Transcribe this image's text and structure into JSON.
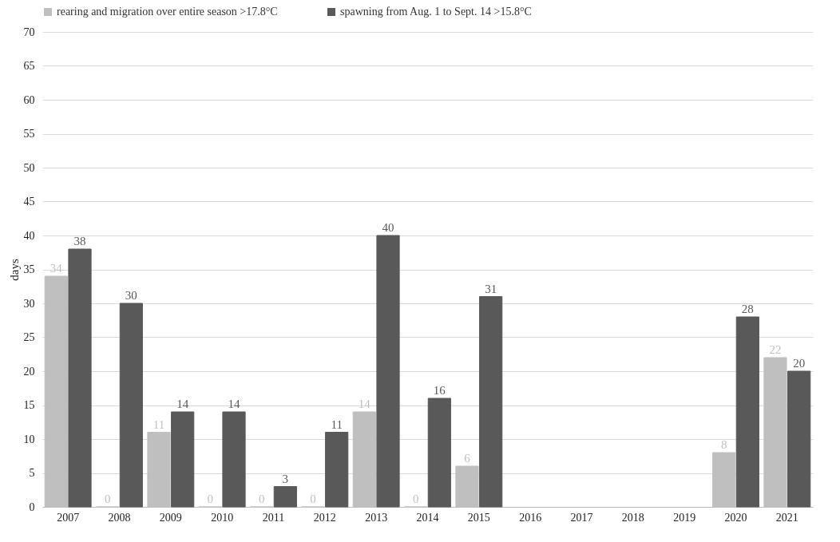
{
  "chart_data": {
    "type": "bar",
    "ylabel": "days",
    "categories": [
      "2007",
      "2008",
      "2009",
      "2010",
      "2011",
      "2012",
      "2013",
      "2014",
      "2015",
      "2016",
      "2017",
      "2018",
      "2019",
      "2020",
      "2021"
    ],
    "series": [
      {
        "name": "rearing and migration over entire season >17.8°C",
        "color": "#bfbfbf",
        "values": [
          34,
          0,
          11,
          0,
          0,
          0,
          14,
          0,
          6,
          null,
          null,
          null,
          null,
          8,
          22
        ]
      },
      {
        "name": "spawning from Aug. 1 to Sept. 14 >15.8°C",
        "color": "#595959",
        "values": [
          38,
          30,
          14,
          14,
          3,
          11,
          40,
          16,
          31,
          null,
          null,
          null,
          null,
          28,
          20
        ]
      }
    ],
    "ylim": [
      0,
      70
    ],
    "yticks": [
      0,
      5,
      10,
      15,
      20,
      25,
      30,
      35,
      40,
      45,
      50,
      55,
      60,
      65,
      70
    ],
    "grid": "y",
    "legend": "top",
    "data_labels": true
  }
}
